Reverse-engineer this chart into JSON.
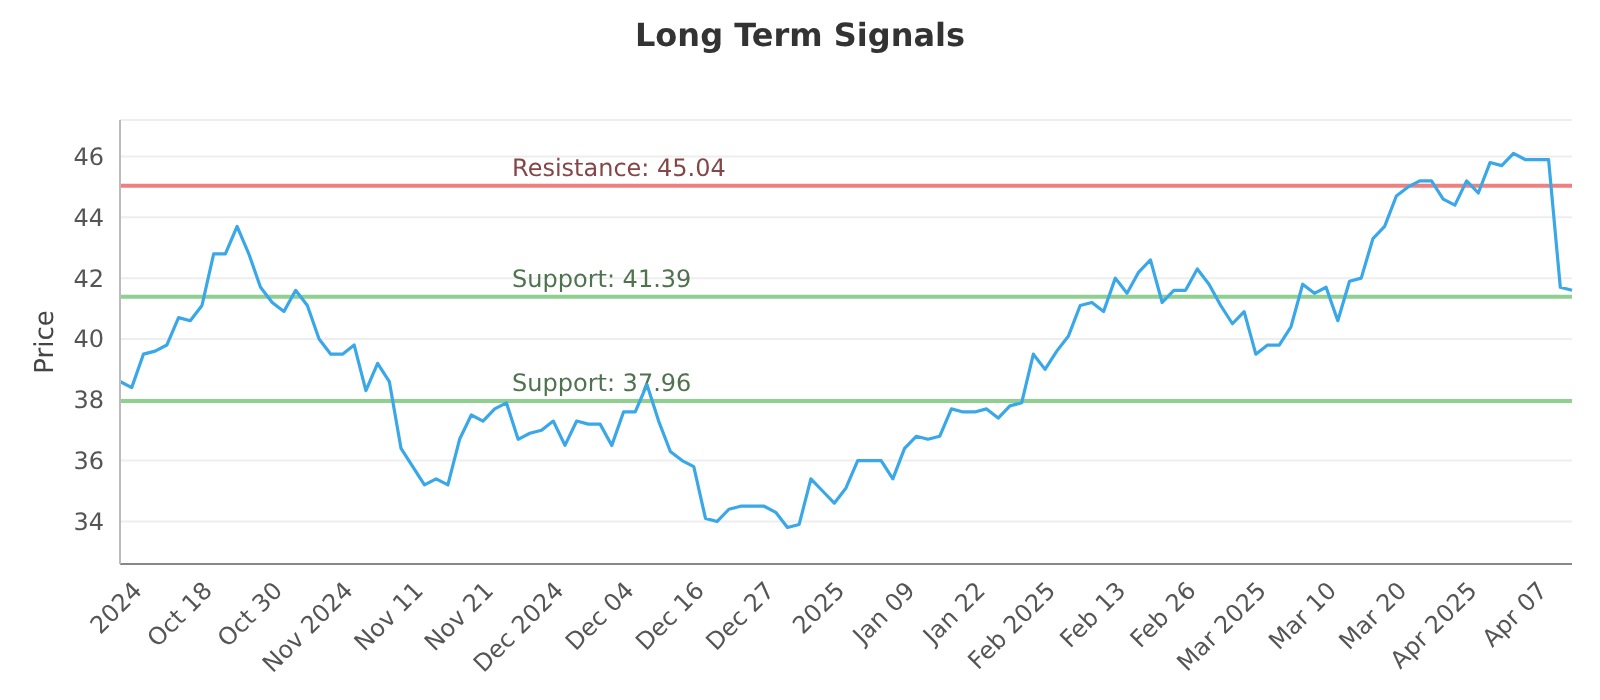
{
  "chart_data": {
    "type": "line",
    "title": "Long Term Signals",
    "ylabel": "Price",
    "categories": [
      null,
      null,
      "2024",
      null,
      null,
      null,
      null,
      null,
      "Oct 18",
      null,
      null,
      null,
      null,
      null,
      "Oct 30",
      null,
      null,
      null,
      null,
      null,
      "Nov 2024",
      null,
      null,
      null,
      null,
      null,
      "Nov 11",
      null,
      null,
      null,
      null,
      null,
      "Nov 21",
      null,
      null,
      null,
      null,
      null,
      "Dec 2024",
      null,
      null,
      null,
      null,
      null,
      "Dec 04",
      null,
      null,
      null,
      null,
      null,
      "Dec 16",
      null,
      null,
      null,
      null,
      null,
      "Dec 27",
      null,
      null,
      null,
      null,
      null,
      "2025",
      null,
      null,
      null,
      null,
      null,
      "Jan 09",
      null,
      null,
      null,
      null,
      null,
      "Jan 22",
      null,
      null,
      null,
      null,
      null,
      "Feb 2025",
      null,
      null,
      null,
      null,
      null,
      "Feb 13",
      null,
      null,
      null,
      null,
      null,
      "Feb 26",
      null,
      null,
      null,
      null,
      null,
      "Mar 2025",
      null,
      null,
      null,
      null,
      null,
      "Mar 10",
      null,
      null,
      null,
      null,
      null,
      "Mar 20",
      null,
      null,
      null,
      null,
      null,
      "Apr 2025",
      null,
      null,
      null,
      null,
      null,
      "Apr 07",
      null,
      null
    ],
    "series": [
      {
        "color": "#3aa8e8",
        "values": [
          38.6,
          38.4,
          39.5,
          39.6,
          39.8,
          40.7,
          40.6,
          41.1,
          42.8,
          42.8,
          43.7,
          42.8,
          41.7,
          41.2,
          40.9,
          41.6,
          41.1,
          40.0,
          39.5,
          39.5,
          39.8,
          38.3,
          39.2,
          38.6,
          36.4,
          35.8,
          35.2,
          35.4,
          35.2,
          36.7,
          37.5,
          37.3,
          37.7,
          37.9,
          36.7,
          36.9,
          37.0,
          37.3,
          36.5,
          37.3,
          37.2,
          37.2,
          36.5,
          37.6,
          37.6,
          38.5,
          37.3,
          36.3,
          36.0,
          35.8,
          34.1,
          34.0,
          34.4,
          34.5,
          34.5,
          34.5,
          34.3,
          33.8,
          33.9,
          35.4,
          35.0,
          34.6,
          35.1,
          36.0,
          36.0,
          36.0,
          35.4,
          36.4,
          36.8,
          36.7,
          36.8,
          37.7,
          37.6,
          37.6,
          37.7,
          37.4,
          37.8,
          37.9,
          39.5,
          39.0,
          39.6,
          40.1,
          41.1,
          41.2,
          40.9,
          42.0,
          41.5,
          42.2,
          42.6,
          41.2,
          41.6,
          41.6,
          42.3,
          41.8,
          41.1,
          40.5,
          40.9,
          39.5,
          39.8,
          39.8,
          40.4,
          41.8,
          41.5,
          41.7,
          40.6,
          41.9,
          42.0,
          43.3,
          43.7,
          44.7,
          45.0,
          45.2,
          45.2,
          44.6,
          44.4,
          45.2,
          44.8,
          45.8,
          45.7,
          46.1,
          45.9,
          45.9,
          45.9,
          41.7,
          41.6
        ]
      }
    ],
    "ylim": [
      32.6,
      47.2
    ],
    "yticks": [
      34,
      36,
      38,
      40,
      42,
      44,
      46
    ],
    "grid": "y",
    "legend": false,
    "marker": "none",
    "line_style": "solid",
    "ref_lines": [
      {
        "axis": "y",
        "value": 45.04,
        "label": "Resistance: 45.04",
        "color": "#f08080"
      },
      {
        "axis": "y",
        "value": 41.39,
        "label": "Support: 41.39",
        "color": "#8fcf8f"
      },
      {
        "axis": "y",
        "value": 37.96,
        "label": "Support: 37.96",
        "color": "#8fcf8f"
      }
    ]
  }
}
